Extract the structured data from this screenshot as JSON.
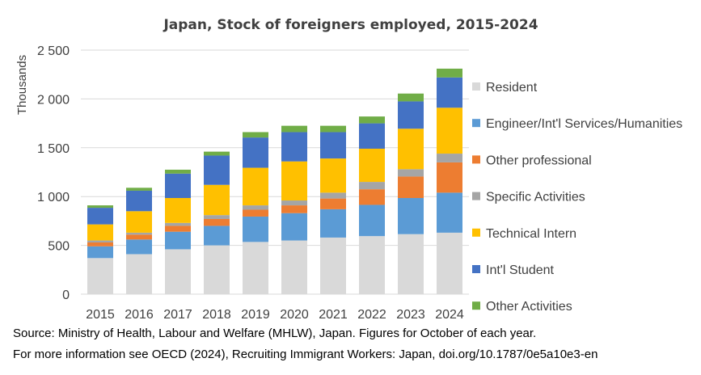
{
  "chart_data": {
    "type": "bar",
    "stacked": true,
    "title": "Japan, Stock of foreigners employed, 2015-2024",
    "ylabel": "Thousands",
    "xlabel": "",
    "ylim": [
      0,
      2500
    ],
    "yticks": [
      0,
      500,
      1000,
      1500,
      2000,
      2500
    ],
    "ytick_labels": [
      "0",
      "500",
      "1 000",
      "1 500",
      "2 000",
      "2 500"
    ],
    "categories": [
      "2015",
      "2016",
      "2017",
      "2018",
      "2019",
      "2020",
      "2021",
      "2022",
      "2023",
      "2024"
    ],
    "grid": "horizontal",
    "legend_position": "right",
    "series": [
      {
        "name": "Resident",
        "color": "#d9d9d9",
        "values": [
          370,
          410,
          460,
          500,
          535,
          550,
          580,
          595,
          615,
          630
        ]
      },
      {
        "name": "Engineer/Int'l Services/Humanities",
        "color": "#5b9bd5",
        "values": [
          120,
          150,
          180,
          200,
          260,
          280,
          290,
          320,
          370,
          410
        ]
      },
      {
        "name": "Other professional",
        "color": "#ed7d31",
        "values": [
          40,
          50,
          60,
          70,
          70,
          80,
          110,
          160,
          220,
          310
        ]
      },
      {
        "name": "Specific Activities",
        "color": "#a5a5a5",
        "values": [
          20,
          20,
          30,
          40,
          45,
          50,
          60,
          75,
          75,
          90
        ]
      },
      {
        "name": "Technical Intern",
        "color": "#ffc000",
        "values": [
          165,
          220,
          255,
          310,
          385,
          400,
          350,
          340,
          415,
          470
        ]
      },
      {
        "name": "Int'l Student",
        "color": "#4472c4",
        "values": [
          170,
          210,
          250,
          300,
          310,
          300,
          270,
          260,
          280,
          310
        ]
      },
      {
        "name": "Other Activities",
        "color": "#70ad47",
        "values": [
          25,
          30,
          40,
          40,
          55,
          65,
          65,
          70,
          80,
          90
        ]
      }
    ]
  },
  "source": {
    "line1": "Source: Ministry of Health, Labour and Welfare (MHLW), Japan. Figures for October of each year.",
    "line2": "For more information see OECD (2024), Recruiting Immigrant Workers: Japan, doi.org/10.1787/0e5a10e3-en"
  }
}
